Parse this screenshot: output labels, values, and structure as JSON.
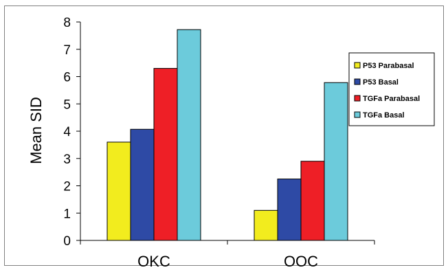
{
  "chart_data": {
    "type": "bar",
    "title": "",
    "xlabel": "",
    "ylabel": "Mean SID",
    "ylim": [
      0,
      8
    ],
    "yticks": [
      0,
      1,
      2,
      3,
      4,
      5,
      6,
      7,
      8
    ],
    "categories": [
      "OKC",
      "OOC"
    ],
    "series": [
      {
        "name": "P53 Parabasal",
        "color": "#f2ec1e",
        "values": [
          3.6,
          1.1
        ]
      },
      {
        "name": "P53 Basal",
        "color": "#2e4aa5",
        "values": [
          4.07,
          2.25
        ]
      },
      {
        "name": "TGFa Parabasal",
        "color": "#ee1f26",
        "values": [
          6.3,
          2.9
        ]
      },
      {
        "name": "TGFa Basal",
        "color": "#6ccbdb",
        "values": [
          7.72,
          5.78
        ]
      }
    ],
    "legend_position": "right",
    "grid": false
  }
}
